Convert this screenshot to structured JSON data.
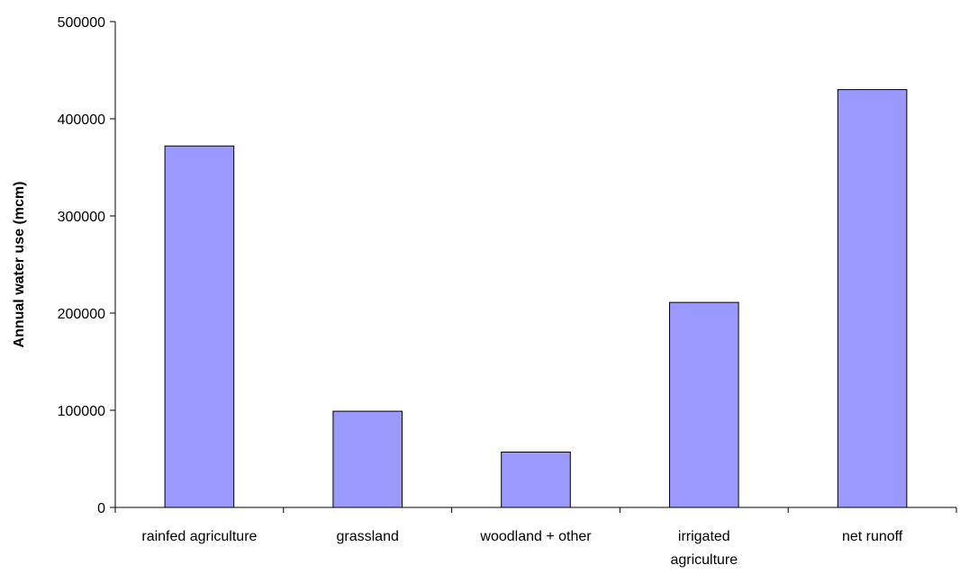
{
  "chart_data": {
    "type": "bar",
    "title": "",
    "xlabel": "",
    "ylabel": "Annual water use (mcm)",
    "ylim": [
      0,
      500000
    ],
    "yticks": [
      0,
      100000,
      200000,
      300000,
      400000,
      500000
    ],
    "ytick_labels": [
      "0",
      "100000",
      "200000",
      "300000",
      "400000",
      "500000"
    ],
    "categories": [
      [
        "rainfed agriculture"
      ],
      [
        "grassland"
      ],
      [
        "woodland + other"
      ],
      [
        "irrigated",
        "agriculture"
      ],
      [
        "net runoff"
      ]
    ],
    "values": [
      372000,
      99000,
      57000,
      211000,
      430000
    ],
    "grid": false,
    "legend": "none",
    "colors": {
      "bar_fill": "#9999ff",
      "bar_stroke": "#000000",
      "axis": "#000000"
    }
  }
}
